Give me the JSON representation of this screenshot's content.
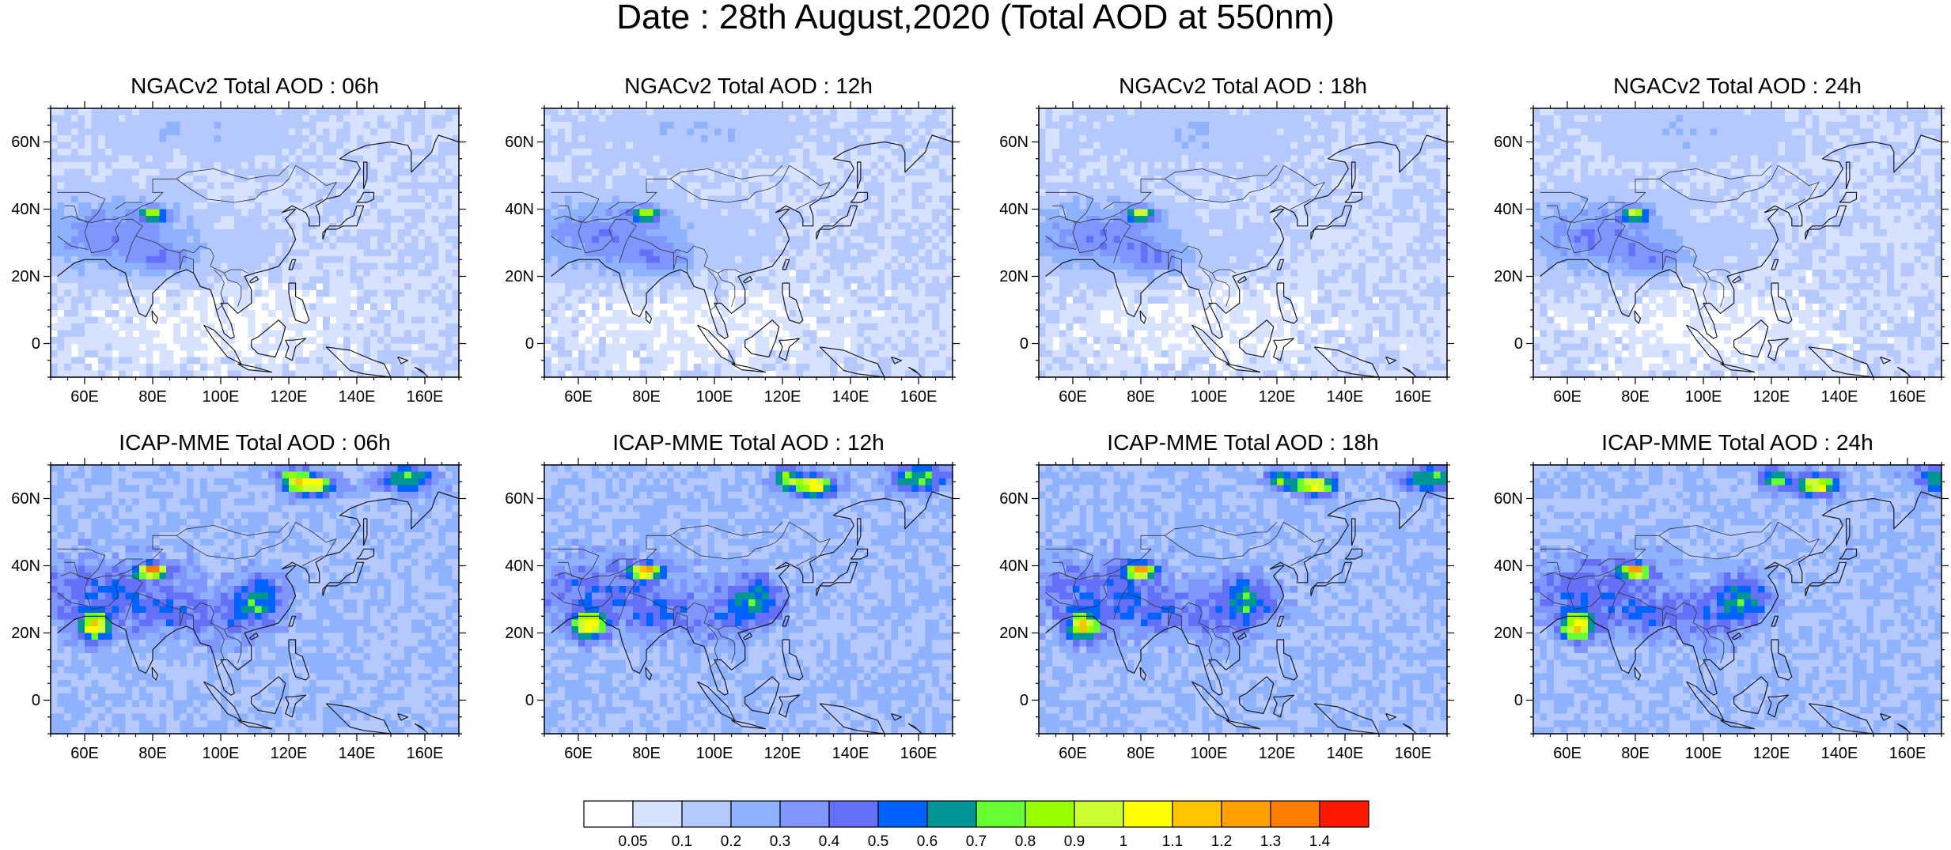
{
  "title": "Date : 28th August,2020 (Total AOD at 550nm)",
  "panels": [
    {
      "title": "NGACv2 Total AOD : 06h",
      "model": "NGACv2",
      "hour": "06h"
    },
    {
      "title": "NGACv2 Total AOD : 12h",
      "model": "NGACv2",
      "hour": "12h"
    },
    {
      "title": "NGACv2 Total AOD : 18h",
      "model": "NGACv2",
      "hour": "18h"
    },
    {
      "title": "NGACv2 Total AOD : 24h",
      "model": "NGACv2",
      "hour": "24h"
    },
    {
      "title": "ICAP-MME Total AOD : 06h",
      "model": "ICAP-MME",
      "hour": "06h"
    },
    {
      "title": "ICAP-MME Total AOD : 12h",
      "model": "ICAP-MME",
      "hour": "12h"
    },
    {
      "title": "ICAP-MME Total AOD : 18h",
      "model": "ICAP-MME",
      "hour": "18h"
    },
    {
      "title": "ICAP-MME Total AOD : 24h",
      "model": "ICAP-MME",
      "hour": "24h"
    }
  ],
  "map": {
    "lon_range": [
      50,
      170
    ],
    "lat_range": [
      -10,
      70
    ],
    "lon_ticks": [
      60,
      80,
      100,
      120,
      140,
      160
    ],
    "lon_tick_labels": [
      "60E",
      "80E",
      "100E",
      "120E",
      "140E",
      "160E"
    ],
    "lat_ticks": [
      0,
      20,
      40,
      60
    ],
    "lat_tick_labels": [
      "0",
      "20N",
      "40N",
      "60N"
    ]
  },
  "colorbar": {
    "labels": [
      "0.05",
      "0.1",
      "0.2",
      "0.3",
      "0.4",
      "0.5",
      "0.6",
      "0.7",
      "0.8",
      "0.9",
      "1",
      "1.1",
      "1.2",
      "1.3",
      "1.4"
    ],
    "colors": [
      "#ffffff",
      "#d6e2ff",
      "#b5c9ff",
      "#8fb2ff",
      "#7f96ff",
      "#6370f7",
      "#0063ff",
      "#009696",
      "#66ff33",
      "#99ff00",
      "#ccff33",
      "#ffff00",
      "#ffc400",
      "#ffa000",
      "#ff7e00",
      "#ff1900"
    ]
  }
}
